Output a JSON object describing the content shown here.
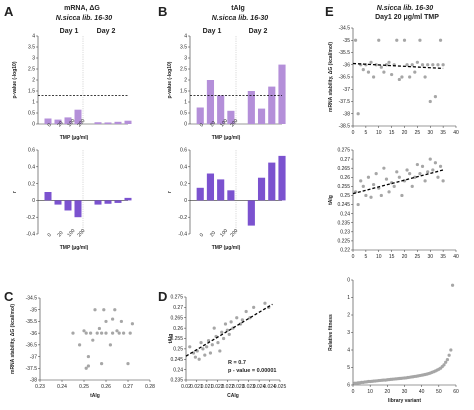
{
  "colors": {
    "pale_bar": "#b48fd9",
    "dark_bar": "#7b52cf",
    "point": "#a6a6a6",
    "fit_line": "#000000",
    "axis": "#333333"
  },
  "panels": {
    "A": {
      "label": "A",
      "title": "mRNA, ΔG",
      "subtitle": "N.sicca lib. 16-30",
      "day1": "Day 1",
      "day2": "Day 2"
    },
    "B": {
      "label": "B",
      "title": "tAIg",
      "subtitle": "N.sicca lib. 16-30",
      "day1": "Day 1",
      "day2": "Day 2"
    },
    "C": {
      "label": "C"
    },
    "D": {
      "label": "D"
    },
    "E": {
      "label": "E",
      "title": "N.sicca lib. 16-30",
      "subtitle": "Day1 20 μg/ml TMP"
    }
  },
  "chart_data": [
    {
      "id": "A-pvalue",
      "type": "bar",
      "categories": [
        "0",
        "20",
        "100",
        "200",
        "0",
        "20",
        "100",
        "200"
      ],
      "groups": [
        "Day 1",
        "Day 2"
      ],
      "values": [
        0.25,
        0.2,
        0.3,
        0.65,
        0.08,
        0.07,
        0.1,
        0.15
      ],
      "ylabel": "p-value (-log10)",
      "xlabel": "TMP (μg/ml)",
      "ylim": [
        0,
        4
      ],
      "yticks": [
        0,
        0.5,
        1,
        1.5,
        2,
        2.5,
        3,
        3.5,
        4
      ],
      "threshold": 1.3
    },
    {
      "id": "A-r",
      "type": "bar",
      "categories": [
        "0",
        "20",
        "100",
        "200",
        "0",
        "20",
        "100",
        "200"
      ],
      "groups": [
        "Day 1",
        "Day 2"
      ],
      "values": [
        0.1,
        -0.05,
        -0.12,
        -0.2,
        -0.05,
        -0.04,
        -0.03,
        0.03
      ],
      "ylabel": "r",
      "xlabel": "TMP (μg/ml)",
      "ylim": [
        -0.4,
        0.6
      ],
      "yticks": [
        -0.4,
        -0.2,
        0,
        0.2,
        0.4,
        0.6
      ]
    },
    {
      "id": "B-pvalue",
      "type": "bar",
      "categories": [
        "0",
        "20",
        "100",
        "200",
        "0",
        "20",
        "100",
        "200"
      ],
      "groups": [
        "Day 1",
        "Day 2"
      ],
      "values": [
        0.75,
        2.0,
        1.3,
        0.6,
        1.5,
        0.7,
        1.7,
        2.7
      ],
      "ylabel": "p-value (-log10)",
      "xlabel": "TMP (μg/ml)",
      "ylim": [
        0,
        4
      ],
      "yticks": [
        0,
        0.5,
        1,
        1.5,
        2,
        2.5,
        3,
        3.5,
        4
      ],
      "threshold": 1.3
    },
    {
      "id": "B-r",
      "type": "bar",
      "categories": [
        "0",
        "20",
        "100",
        "200",
        "0",
        "20",
        "100",
        "200"
      ],
      "groups": [
        "Day 1",
        "Day 2"
      ],
      "values": [
        0.15,
        0.32,
        0.25,
        0.12,
        -0.3,
        0.27,
        0.45,
        0.53
      ],
      "ylabel": "r",
      "xlabel": "TMP (μg/ml)",
      "ylim": [
        -0.4,
        0.6
      ],
      "yticks": [
        -0.4,
        -0.2,
        0,
        0.2,
        0.4,
        0.6
      ]
    },
    {
      "id": "C",
      "type": "scatter",
      "xlabel": "tAIg",
      "ylabel": "mRNA stability, ΔG (kcal/mol)",
      "xlim": [
        0.23,
        0.28
      ],
      "ylim": [
        -38,
        -34.5
      ],
      "xticks": [
        "0.23",
        "0.24",
        "0.25",
        "0.26",
        "0.27",
        "0.28"
      ],
      "yticks": [
        "-34.5",
        "-35",
        "-35.5",
        "-36",
        "-36.5",
        "-37",
        "-37.5",
        "-38"
      ],
      "points": [
        [
          0.245,
          -36
        ],
        [
          0.248,
          -36.5
        ],
        [
          0.25,
          -35.9
        ],
        [
          0.251,
          -36
        ],
        [
          0.252,
          -37
        ],
        [
          0.252,
          -37.4
        ],
        [
          0.253,
          -36
        ],
        [
          0.254,
          -36.3
        ],
        [
          0.255,
          -35
        ],
        [
          0.256,
          -36
        ],
        [
          0.257,
          -35.8
        ],
        [
          0.258,
          -36
        ],
        [
          0.258,
          -37.3
        ],
        [
          0.259,
          -35
        ],
        [
          0.26,
          -36
        ],
        [
          0.26,
          -35.5
        ],
        [
          0.262,
          -36.5
        ],
        [
          0.263,
          -35.4
        ],
        [
          0.263,
          -36
        ],
        [
          0.264,
          -35
        ],
        [
          0.265,
          -35.9
        ],
        [
          0.266,
          -36
        ],
        [
          0.267,
          -35.5
        ],
        [
          0.268,
          -36
        ],
        [
          0.27,
          -37.3
        ],
        [
          0.271,
          -36
        ],
        [
          0.272,
          -35.6
        ],
        [
          0.251,
          -37.5
        ]
      ]
    },
    {
      "id": "D",
      "type": "scatter",
      "xlabel": "CAIg",
      "ylabel": "tAIg",
      "xlim": [
        0.02,
        0.025
      ],
      "ylim": [
        0.235,
        0.275
      ],
      "xticks": [
        "0.02",
        "0.021",
        "0.021",
        "0.022",
        "0.022",
        "0.023",
        "0.023",
        "0.024",
        "0.024",
        "0.025"
      ],
      "yticks": [
        "0.275",
        "0.27",
        "0.265",
        "0.26",
        "0.255",
        "0.25",
        "0.245",
        "0.24",
        "0.235"
      ],
      "fit": {
        "x": [
          0.02,
          0.0246
        ],
        "y": [
          0.2465,
          0.2715
        ]
      },
      "annotations": [
        "R = 0.7",
        "p - value  = 0.00001"
      ],
      "points": [
        [
          0.0202,
          0.251
        ],
        [
          0.0204,
          0.248
        ],
        [
          0.0205,
          0.246
        ],
        [
          0.0206,
          0.249
        ],
        [
          0.0207,
          0.245
        ],
        [
          0.0208,
          0.253
        ],
        [
          0.0209,
          0.25
        ],
        [
          0.021,
          0.247
        ],
        [
          0.0211,
          0.251
        ],
        [
          0.0212,
          0.254
        ],
        [
          0.0213,
          0.248
        ],
        [
          0.0214,
          0.252
        ],
        [
          0.0215,
          0.26
        ],
        [
          0.0216,
          0.256
        ],
        [
          0.0217,
          0.253
        ],
        [
          0.0218,
          0.249
        ],
        [
          0.0219,
          0.258
        ],
        [
          0.022,
          0.255
        ],
        [
          0.0221,
          0.262
        ],
        [
          0.0222,
          0.259
        ],
        [
          0.0223,
          0.257
        ],
        [
          0.0224,
          0.263
        ],
        [
          0.0225,
          0.26
        ],
        [
          0.0227,
          0.265
        ],
        [
          0.0229,
          0.262
        ],
        [
          0.023,
          0.264
        ],
        [
          0.0232,
          0.268
        ],
        [
          0.0234,
          0.265
        ],
        [
          0.0236,
          0.27
        ],
        [
          0.0242,
          0.272
        ],
        [
          0.0244,
          0.27
        ]
      ]
    },
    {
      "id": "E-deltaG",
      "type": "scatter",
      "xlabel": "",
      "ylabel": "mRNA stability, ΔG (kcal/mol)",
      "xlim": [
        0,
        40
      ],
      "ylim": [
        -38.5,
        -34.5
      ],
      "xticks": [
        "0",
        "5",
        "10",
        "15",
        "20",
        "25",
        "30",
        "35",
        "40"
      ],
      "yticks": [
        "-34.5",
        "-35",
        "-35.5",
        "-36",
        "-36.5",
        "-37",
        "-37.5",
        "-38",
        "-38.5"
      ],
      "fit": {
        "x": [
          0,
          35
        ],
        "y": [
          -35.95,
          -36.15
        ]
      },
      "points": [
        [
          1,
          -35
        ],
        [
          2,
          -38
        ],
        [
          3,
          -36
        ],
        [
          4,
          -36.2
        ],
        [
          5,
          -36
        ],
        [
          6,
          -36.3
        ],
        [
          7,
          -35.9
        ],
        [
          8,
          -36.5
        ],
        [
          9,
          -36
        ],
        [
          10,
          -35
        ],
        [
          11,
          -36.1
        ],
        [
          12,
          -36.3
        ],
        [
          13,
          -36
        ],
        [
          14,
          -35.9
        ],
        [
          15,
          -36.4
        ],
        [
          16,
          -36
        ],
        [
          17,
          -35
        ],
        [
          18,
          -36.6
        ],
        [
          19,
          -36.5
        ],
        [
          20,
          -35
        ],
        [
          21,
          -36
        ],
        [
          22,
          -36.5
        ],
        [
          23,
          -36
        ],
        [
          24,
          -36.3
        ],
        [
          25,
          -35.9
        ],
        [
          26,
          -35
        ],
        [
          27,
          -36
        ],
        [
          28,
          -36.5
        ],
        [
          29,
          -36
        ],
        [
          30,
          -37.5
        ],
        [
          31,
          -36
        ],
        [
          32,
          -37.3
        ],
        [
          33,
          -36
        ],
        [
          34,
          -35
        ],
        [
          35,
          -36
        ]
      ]
    },
    {
      "id": "E-tAIg",
      "type": "scatter",
      "xlabel": "",
      "ylabel": "tAIg",
      "xlim": [
        0,
        40
      ],
      "ylim": [
        0.22,
        0.275
      ],
      "xticks": [
        "0",
        "5",
        "10",
        "15",
        "20",
        "25",
        "30",
        "35",
        "40"
      ],
      "yticks": [
        "0.275",
        "0.27",
        "0.265",
        "0.26",
        "0.255",
        "0.25",
        "0.245",
        "0.24",
        "0.235",
        "0.23",
        "0.225",
        "0.22"
      ],
      "fit": {
        "x": [
          0,
          35
        ],
        "y": [
          0.251,
          0.264
        ]
      },
      "points": [
        [
          1,
          0.252
        ],
        [
          2,
          0.245
        ],
        [
          3,
          0.258
        ],
        [
          4,
          0.255
        ],
        [
          5,
          0.25
        ],
        [
          6,
          0.26
        ],
        [
          7,
          0.249
        ],
        [
          8,
          0.256
        ],
        [
          9,
          0.262
        ],
        [
          10,
          0.254
        ],
        [
          11,
          0.25
        ],
        [
          12,
          0.265
        ],
        [
          13,
          0.259
        ],
        [
          14,
          0.252
        ],
        [
          15,
          0.257
        ],
        [
          16,
          0.255
        ],
        [
          17,
          0.263
        ],
        [
          18,
          0.26
        ],
        [
          19,
          0.25
        ],
        [
          20,
          0.258
        ],
        [
          21,
          0.264
        ],
        [
          22,
          0.262
        ],
        [
          23,
          0.255
        ],
        [
          24,
          0.26
        ],
        [
          25,
          0.267
        ],
        [
          26,
          0.262
        ],
        [
          27,
          0.266
        ],
        [
          28,
          0.258
        ],
        [
          29,
          0.263
        ],
        [
          30,
          0.27
        ],
        [
          31,
          0.264
        ],
        [
          32,
          0.268
        ],
        [
          33,
          0.26
        ],
        [
          34,
          0.266
        ],
        [
          35,
          0.258
        ]
      ]
    },
    {
      "id": "E-fitness",
      "type": "scatter",
      "xlabel": "library variant",
      "ylabel": "Relative fitness",
      "xlim": [
        0,
        60
      ],
      "ylim": [
        0,
        6
      ],
      "xticks": [
        "0",
        "10",
        "20",
        "30",
        "40",
        "50",
        "60"
      ],
      "yticks": [
        "0",
        "1",
        "2",
        "3",
        "4",
        "5",
        "6"
      ],
      "points": [
        [
          1,
          0.1
        ],
        [
          2,
          0.1
        ],
        [
          3,
          0.12
        ],
        [
          4,
          0.13
        ],
        [
          5,
          0.15
        ],
        [
          6,
          0.15
        ],
        [
          7,
          0.17
        ],
        [
          8,
          0.18
        ],
        [
          9,
          0.2
        ],
        [
          10,
          0.2
        ],
        [
          11,
          0.21
        ],
        [
          12,
          0.22
        ],
        [
          13,
          0.23
        ],
        [
          14,
          0.24
        ],
        [
          15,
          0.25
        ],
        [
          16,
          0.26
        ],
        [
          17,
          0.27
        ],
        [
          18,
          0.28
        ],
        [
          19,
          0.28
        ],
        [
          20,
          0.3
        ],
        [
          21,
          0.31
        ],
        [
          22,
          0.32
        ],
        [
          23,
          0.33
        ],
        [
          24,
          0.34
        ],
        [
          25,
          0.35
        ],
        [
          26,
          0.36
        ],
        [
          27,
          0.37
        ],
        [
          28,
          0.38
        ],
        [
          29,
          0.39
        ],
        [
          30,
          0.4
        ],
        [
          31,
          0.41
        ],
        [
          32,
          0.43
        ],
        [
          33,
          0.44
        ],
        [
          34,
          0.46
        ],
        [
          35,
          0.47
        ],
        [
          36,
          0.49
        ],
        [
          37,
          0.5
        ],
        [
          38,
          0.52
        ],
        [
          39,
          0.54
        ],
        [
          40,
          0.56
        ],
        [
          41,
          0.58
        ],
        [
          42,
          0.6
        ],
        [
          43,
          0.62
        ],
        [
          44,
          0.65
        ],
        [
          45,
          0.68
        ],
        [
          46,
          0.72
        ],
        [
          47,
          0.76
        ],
        [
          48,
          0.8
        ],
        [
          49,
          0.85
        ],
        [
          50,
          0.9
        ],
        [
          51,
          0.96
        ],
        [
          52,
          1.05
        ],
        [
          53,
          1.15
        ],
        [
          54,
          1.3
        ],
        [
          55,
          1.45
        ],
        [
          56,
          1.7
        ],
        [
          57,
          2.0
        ],
        [
          58,
          5.7
        ]
      ]
    }
  ]
}
